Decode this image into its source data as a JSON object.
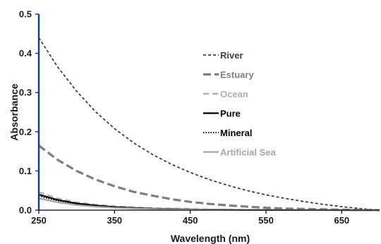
{
  "chart_data": {
    "type": "line",
    "title": "",
    "xlabel": "Wavelength (nm)",
    "ylabel": "Absorbance",
    "xlim": [
      250,
      700
    ],
    "ylim": [
      0,
      0.5
    ],
    "x_ticks": [
      250,
      350,
      450,
      550,
      650
    ],
    "y_ticks": [
      0.0,
      0.1,
      0.2,
      0.3,
      0.4,
      0.5
    ],
    "x_tick_labels": [
      "250",
      "350",
      "450",
      "550",
      "650"
    ],
    "y_tick_labels": [
      "0.0",
      "0.1",
      "0.2",
      "0.3",
      "0.4",
      "0.5"
    ],
    "grid": false,
    "legend_position": "right",
    "x": [
      250,
      275,
      300,
      325,
      350,
      375,
      400,
      425,
      450,
      475,
      500,
      525,
      550,
      575,
      600,
      625,
      650,
      675,
      700
    ],
    "series": [
      {
        "name": "River",
        "color": "#404040",
        "dash": "short-dash",
        "values": [
          0.44,
          0.365,
          0.303,
          0.251,
          0.208,
          0.172,
          0.142,
          0.117,
          0.096,
          0.078,
          0.063,
          0.05,
          0.039,
          0.03,
          0.022,
          0.015,
          0.009,
          0.004,
          0.0
        ]
      },
      {
        "name": "Estuary",
        "color": "#7f7f7f",
        "dash": "long-dash",
        "values": [
          0.165,
          0.128,
          0.1,
          0.078,
          0.061,
          0.047,
          0.037,
          0.028,
          0.021,
          0.016,
          0.012,
          0.009,
          0.006,
          0.004,
          0.003,
          0.002,
          0.001,
          0.0005,
          0.0
        ]
      },
      {
        "name": "Ocean",
        "color": "#b0b0b0",
        "dash": "dash",
        "values": [
          0.046,
          0.03,
          0.02,
          0.014,
          0.01,
          0.007,
          0.005,
          0.004,
          0.003,
          0.002,
          0.0015,
          0.001,
          0.0008,
          0.0005,
          0.0003,
          0.0002,
          0.0001,
          0.0,
          0.0
        ]
      },
      {
        "name": "Pure",
        "color": "#000000",
        "dash": "solid",
        "values": [
          0.04,
          0.026,
          0.017,
          0.012,
          0.008,
          0.006,
          0.004,
          0.003,
          0.002,
          0.0015,
          0.001,
          0.0008,
          0.0005,
          0.0003,
          0.0002,
          0.0001,
          0.0,
          0.0,
          0.0
        ]
      },
      {
        "name": "Mineral",
        "color": "#000000",
        "dash": "dotted",
        "values": [
          0.036,
          0.024,
          0.016,
          0.011,
          0.008,
          0.0055,
          0.004,
          0.003,
          0.002,
          0.0015,
          0.001,
          0.0007,
          0.0005,
          0.0003,
          0.0002,
          0.0001,
          0.0,
          0.0,
          0.0
        ]
      },
      {
        "name": "Artificial Sea",
        "color": "#a6a6a6",
        "dash": "solid",
        "values": [
          0.03,
          0.02,
          0.013,
          0.009,
          0.006,
          0.0045,
          0.003,
          0.0022,
          0.0016,
          0.0012,
          0.0009,
          0.0006,
          0.0004,
          0.0003,
          0.0002,
          0.0001,
          0.0,
          0.0,
          0.0
        ]
      }
    ]
  }
}
